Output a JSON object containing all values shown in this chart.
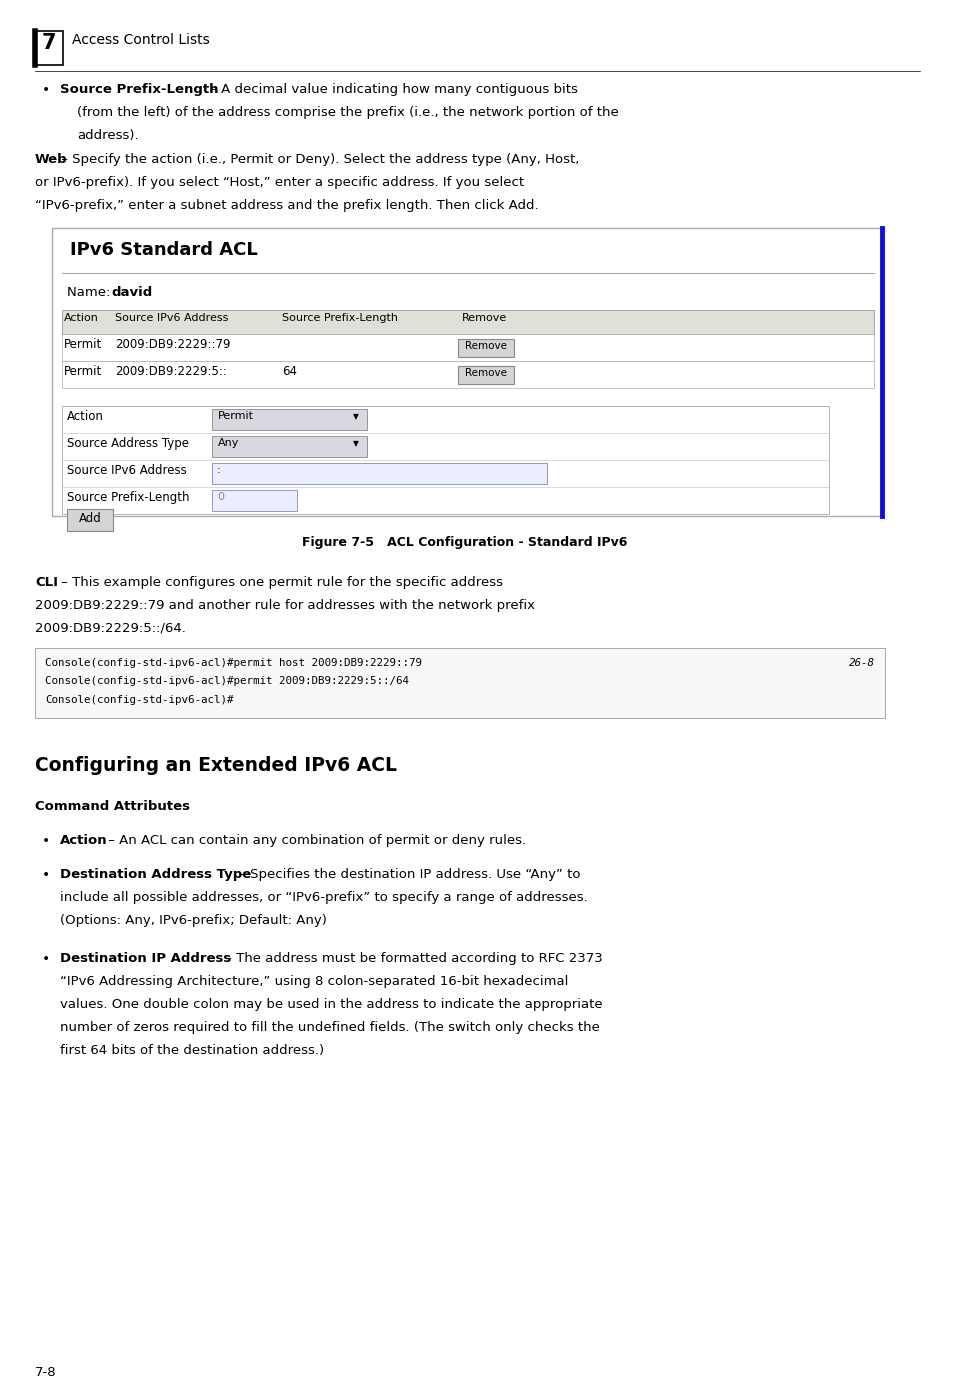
{
  "bg_color": "#ffffff",
  "page_width": 9.54,
  "page_height": 13.88,
  "header_number": "7",
  "header_text": "Access Control Lists",
  "bullet1_bold": "Source Prefix-Length",
  "web_bold": "Web",
  "acl_title": "IPv6 Standard ACL",
  "acl_name_value": "david",
  "table_headers": [
    "Action",
    "Source IPv6 Address",
    "Source Prefix-Length",
    "Remove"
  ],
  "table_row1": [
    "Permit",
    "2009:DB9:2229::79",
    "",
    "Remove"
  ],
  "table_row2": [
    "Permit",
    "2009:DB9:2229:5::",
    "64",
    "Remove"
  ],
  "form_rows": [
    [
      "Action",
      "Permit"
    ],
    [
      "Source Address Type",
      "Any"
    ],
    [
      "Source IPv6 Address",
      ":"
    ],
    [
      "Source Prefix-Length",
      "0"
    ]
  ],
  "add_button": "Add",
  "figure_caption": "Figure 7-5   ACL Configuration - Standard IPv6",
  "cli_bold": "CLI",
  "console_lines": [
    "Console(config-std-ipv6-acl)#permit host 2009:DB9:2229::79",
    "Console(config-std-ipv6-acl)#permit 2009:DB9:2229:5::/64",
    "Console(config-std-ipv6-acl)#"
  ],
  "console_right": "26-8",
  "section_title": "Configuring an Extended IPv6 ACL",
  "cmd_attr_title": "Command Attributes",
  "ext_bullet1_bold": "Action",
  "ext_bullet2_bold": "Destination Address Type",
  "ext_bullet3_bold": "Destination IP Address",
  "page_number": "7-8"
}
